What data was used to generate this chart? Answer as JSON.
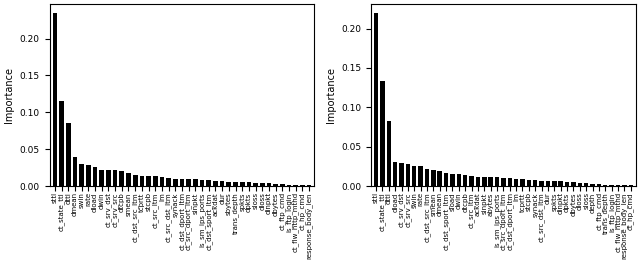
{
  "left": {
    "labels": [
      "sttl",
      "ct_state_ttl",
      "dttl",
      "dmean",
      "swin",
      "rate",
      "dload",
      "dwin",
      "ct_srv_dst",
      "ct_srv_src",
      "dtcpb",
      "smean",
      "ct_dst_src_ltm",
      "tcprtt",
      "stcpb",
      "ct_src_ltm",
      "lm",
      "ct_src_dst_ltm",
      "synack",
      "ct_dst_dport_ltm",
      "ct_src_dport_ltm",
      "sinpkt",
      "is_sm_ips_ports",
      "ct_dst_sport_ltm",
      "ackdat",
      "dur",
      "sbytes",
      "trans_depth",
      "spkts",
      "dpkts",
      "sloss",
      "dloss",
      "dinpkt",
      "dbytes",
      "ct_ftp_cmd",
      "is_ftp_login",
      "ct_flw_http_mthd",
      "ct_hp_cmd",
      "response_body_len"
    ],
    "values": [
      0.235,
      0.115,
      0.085,
      0.04,
      0.03,
      0.028,
      0.026,
      0.022,
      0.022,
      0.022,
      0.02,
      0.018,
      0.015,
      0.014,
      0.013,
      0.013,
      0.012,
      0.011,
      0.01,
      0.01,
      0.009,
      0.009,
      0.008,
      0.008,
      0.007,
      0.007,
      0.006,
      0.005,
      0.005,
      0.005,
      0.004,
      0.004,
      0.004,
      0.003,
      0.003,
      0.002,
      0.001,
      0.001,
      0.001
    ],
    "ylabel": "Importance"
  },
  "right": {
    "labels": [
      "sttl",
      "ct_state_ttl",
      "dttl",
      "dload",
      "ct_srv_dst",
      "ct_srv_src",
      "swin",
      "rate",
      "ct_dst_src_ltm",
      "smean",
      "dmean",
      "ct_dst_sport_ltm",
      "sload",
      "dwin",
      "dtcpb",
      "ct_src_ltm",
      "ackdat",
      "sinpkt",
      "abytes",
      "is_sm_ips_ports",
      "ct_src_dport_ltm",
      "ct_dst_dport_ltm",
      "lm",
      "tcprtt",
      "stcpb",
      "synack",
      "ct_src_dst_ltm",
      "dur",
      "spkts",
      "dinpkt",
      "dpkts",
      "dbytes",
      "dloss",
      "sloss",
      "depth",
      "ct_ftp_cmd",
      "trans_depth",
      "is_ftp_login",
      "ct_flw_http_mthd",
      "response_body_len",
      "ct_hp_cmd"
    ],
    "values": [
      0.22,
      0.133,
      0.083,
      0.03,
      0.029,
      0.028,
      0.026,
      0.025,
      0.022,
      0.02,
      0.019,
      0.017,
      0.015,
      0.015,
      0.014,
      0.013,
      0.012,
      0.012,
      0.011,
      0.011,
      0.01,
      0.01,
      0.009,
      0.009,
      0.008,
      0.008,
      0.007,
      0.007,
      0.006,
      0.006,
      0.005,
      0.005,
      0.004,
      0.004,
      0.003,
      0.003,
      0.002,
      0.002,
      0.001,
      0.001,
      0.001
    ],
    "ylabel": "Importance"
  },
  "bar_color": "#000000",
  "tick_fontsize": 5.0,
  "ylabel_fontsize": 7.0,
  "ytick_fontsize": 6.5,
  "fig_width": 6.4,
  "fig_height": 2.63,
  "dpi": 100
}
